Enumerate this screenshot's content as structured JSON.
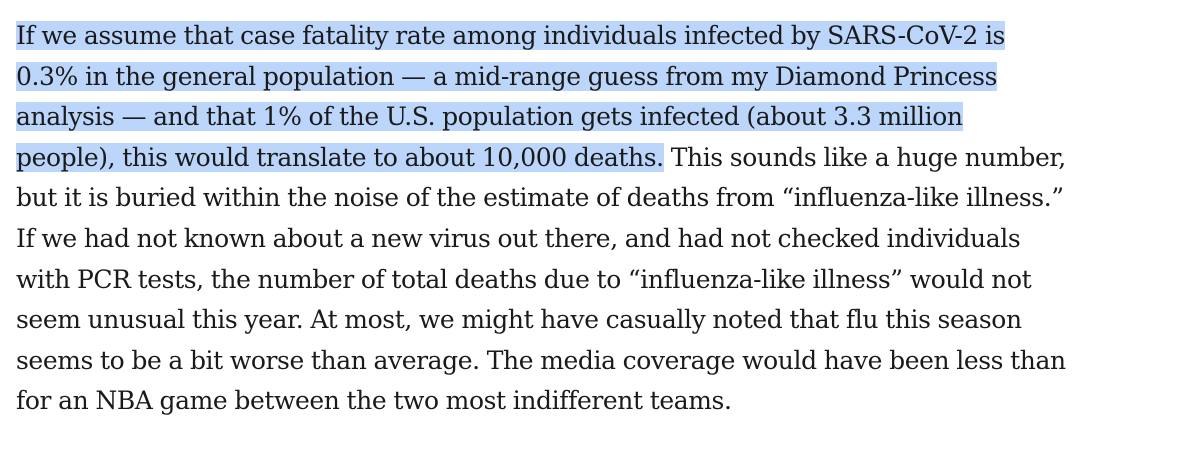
{
  "article": {
    "highlighted_lines": [
      "If we assume that case fatality rate among individuals infected by SARS-CoV-2 is",
      "0.3% in the general population — a mid-range guess from my Diamond Princess",
      "analysis — and that 1% of the U.S. population gets infected (about 3.3 million",
      "people), this would translate to about 10,000 deaths."
    ],
    "line4_rest": " This sounds like a huge number,",
    "lines": [
      "but it is buried within the noise of the estimate of deaths from “influenza-like illness.”",
      "If we had not known about a new virus out there, and had not checked individuals",
      "with PCR tests, the number of total deaths due to “influenza-like illness” would not",
      "seem unusual this year. At most, we might have casually noted that flu this season",
      "seems to be a bit worse than average. The media coverage would have been less than",
      "for an NBA game between the two most indifferent teams."
    ]
  },
  "colors": {
    "selection_highlight": "#bcd6fb",
    "text": "#1a1a1a",
    "background": "#ffffff"
  }
}
